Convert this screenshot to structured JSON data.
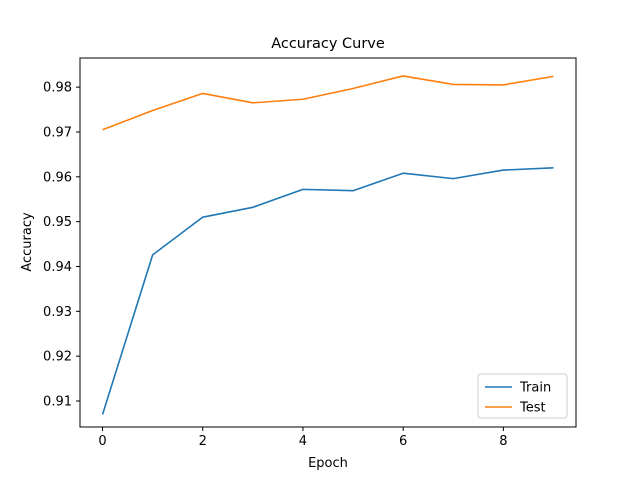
{
  "chart_data": {
    "type": "line",
    "title": "Accuracy Curve",
    "xlabel": "Epoch",
    "ylabel": "Accuracy",
    "x": [
      0,
      1,
      2,
      3,
      4,
      5,
      6,
      7,
      8,
      9
    ],
    "series": [
      {
        "name": "Train",
        "color": "#1f77b4",
        "values": [
          0.907,
          0.9426,
          0.951,
          0.9532,
          0.9572,
          0.9569,
          0.9608,
          0.9596,
          0.9615,
          0.962
        ]
      },
      {
        "name": "Test",
        "color": "#ff7f0e",
        "values": [
          0.9705,
          0.9748,
          0.9786,
          0.9765,
          0.9773,
          0.9797,
          0.9825,
          0.9806,
          0.9805,
          0.9824
        ]
      }
    ],
    "xlim": [
      -0.45,
      9.45
    ],
    "ylim": [
      0.9042,
      0.9865
    ],
    "xticks": [
      0,
      2,
      4,
      6,
      8
    ],
    "yticks": [
      0.91,
      0.92,
      0.93,
      0.94,
      0.95,
      0.96,
      0.97,
      0.98
    ],
    "grid": false,
    "legend_position": "lower-right"
  }
}
